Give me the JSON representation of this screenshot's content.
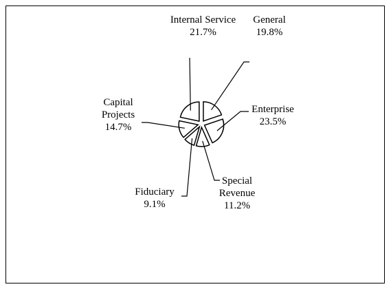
{
  "chart_data": {
    "type": "pie",
    "categories": [
      "General",
      "Enterprise",
      "Special Revenue",
      "Fiduciary",
      "Capital Projects",
      "Internal Service"
    ],
    "values": [
      19.8,
      23.5,
      11.2,
      9.1,
      14.7,
      21.7
    ],
    "value_labels": [
      "19.8%",
      "23.5%",
      "11.2%",
      "9.1%",
      "14.7%",
      "21.7%"
    ],
    "color": "#ffffff"
  }
}
